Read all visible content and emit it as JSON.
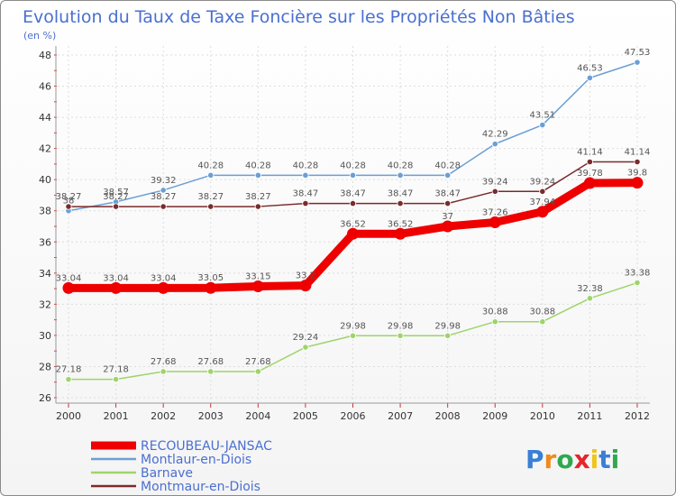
{
  "chart_data": {
    "type": "line",
    "title": "Evolution du Taux de Taxe Foncière sur les Propriétés Non Bâties",
    "ylabel": "(en %)",
    "xlabel": "",
    "categories": [
      "2000",
      "2001",
      "2002",
      "2003",
      "2004",
      "2005",
      "2006",
      "2007",
      "2008",
      "2009",
      "2010",
      "2011",
      "2012"
    ],
    "ylim": [
      26,
      48
    ],
    "yticks": [
      26,
      28,
      30,
      32,
      34,
      36,
      38,
      40,
      42,
      44,
      46,
      48
    ],
    "grid": true,
    "series": [
      {
        "name": "RECOUBEAU-JANSAC",
        "color": "#ee0000",
        "labels": [
          "33.04",
          "33.04",
          "33.04",
          "33.05",
          "33.15",
          "33.2",
          "36.52",
          "36.52",
          "37",
          "37.26",
          "37.94",
          "39.78",
          "39.8"
        ],
        "values": [
          33.04,
          33.04,
          33.04,
          33.05,
          33.15,
          33.2,
          36.52,
          36.52,
          37,
          37.26,
          37.94,
          39.78,
          39.8
        ]
      },
      {
        "name": "Montlaur-en-Diois",
        "color": "#6a9fd4",
        "labels": [
          "38",
          "38.57",
          "39.32",
          "40.28",
          "40.28",
          "40.28",
          "40.28",
          "40.28",
          "40.28",
          "42.29",
          "43.51",
          "46.53",
          "47.53"
        ],
        "values": [
          38,
          38.57,
          39.32,
          40.28,
          40.28,
          40.28,
          40.28,
          40.28,
          40.28,
          42.29,
          43.51,
          46.53,
          47.53
        ]
      },
      {
        "name": "Barnave",
        "color": "#9ed46a",
        "labels": [
          "27.18",
          "27.18",
          "27.68",
          "27.68",
          "27.68",
          "29.24",
          "29.98",
          "29.98",
          "29.98",
          "30.88",
          "30.88",
          "32.38",
          "33.38"
        ],
        "values": [
          27.18,
          27.18,
          27.68,
          27.68,
          27.68,
          29.24,
          29.98,
          29.98,
          29.98,
          30.88,
          30.88,
          32.38,
          33.38
        ]
      },
      {
        "name": "Montmaur-en-Diois",
        "color": "#7a2b2b",
        "labels": [
          "38.27",
          "38.27",
          "38.27",
          "38.27",
          "38.27",
          "38.47",
          "38.47",
          "38.47",
          "38.47",
          "39.24",
          "39.24",
          "41.14",
          "41.14"
        ],
        "values": [
          38.27,
          38.27,
          38.27,
          38.27,
          38.27,
          38.47,
          38.47,
          38.47,
          38.47,
          39.24,
          39.24,
          41.14,
          41.14
        ]
      }
    ]
  },
  "legend": {
    "items": [
      {
        "label": "RECOUBEAU-JANSAC",
        "color": "#ee0000"
      },
      {
        "label": "Montlaur-en-Diois",
        "color": "#6a9fd4"
      },
      {
        "label": "Barnave",
        "color": "#9ed46a"
      },
      {
        "label": "Montmaur-en-Diois",
        "color": "#7a2b2b"
      }
    ]
  },
  "logo": {
    "letters": [
      "P",
      "r",
      "o",
      "x",
      "i",
      "t",
      "i"
    ],
    "colors": [
      "#3a7fd6",
      "#f08a1c",
      "#2fa84f",
      "#e4262b",
      "#f0c419",
      "#3a7fd6",
      "#2fa84f"
    ]
  }
}
